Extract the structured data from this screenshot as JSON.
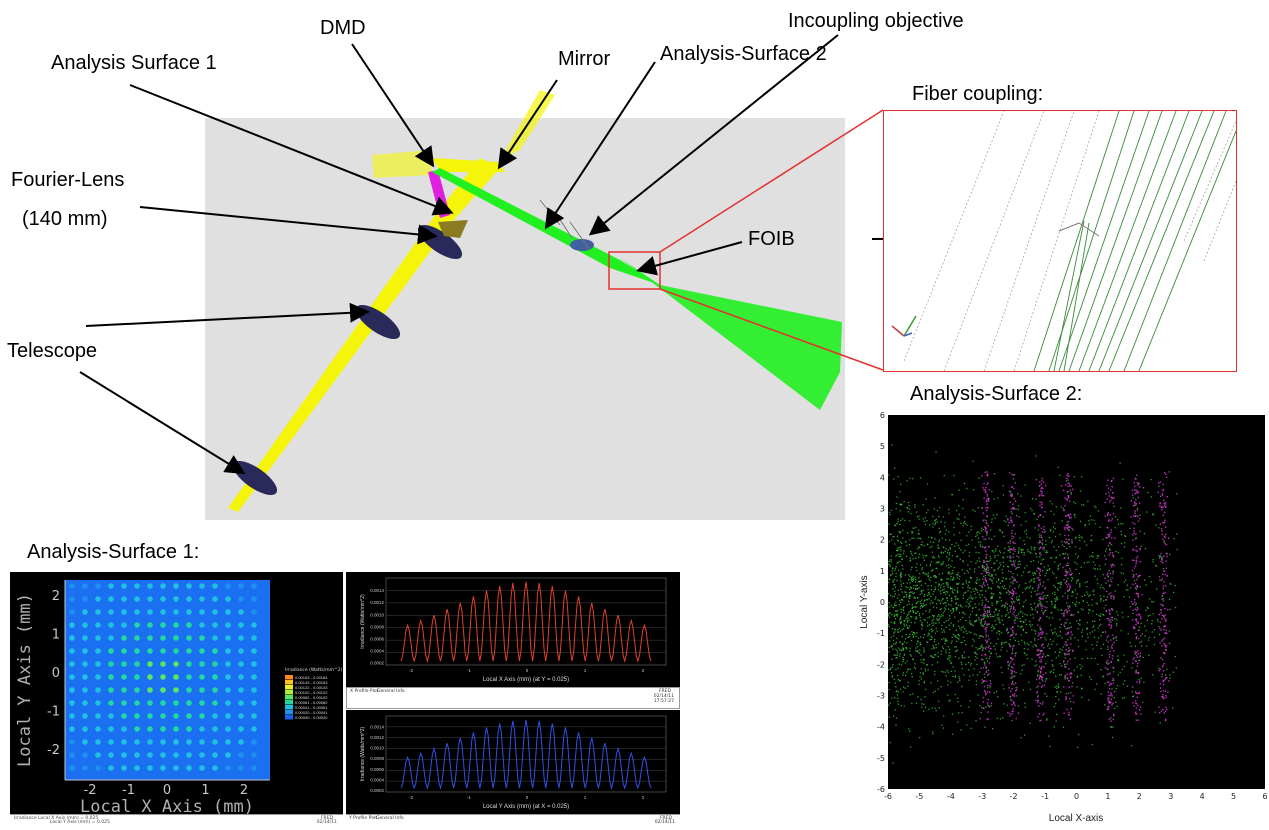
{
  "labels": {
    "dmd": "DMD",
    "incoupling": "Incoupling objective",
    "analysis1": "Analysis Surface 1",
    "mirror": "Mirror",
    "analysis2": "Analysis-Surface 2",
    "fiber": "Fiber coupling:",
    "fourier1": "Fourier-Lens",
    "fourier2": "(140 mm)",
    "foib": "FOIB",
    "telescope": "Telescope",
    "panel_as1": "Analysis-Surface 1:",
    "panel_as2": "Analysis-Surface 2:"
  },
  "irradiance_map": {
    "x_axis_label": "Local X Axis (mm)",
    "y_axis_label": "Local Y Axis (mm)",
    "x_ticks": [
      "-2",
      "-1",
      "0",
      "1",
      "2"
    ],
    "y_ticks": [
      "2",
      "1",
      "0",
      "-1",
      "-2"
    ],
    "legend_title": "Irradiance (Watts/mm^2)",
    "legend_rows": [
      {
        "range": "0.00163 - 0.00184",
        "color": "#ff8a1a"
      },
      {
        "range": "0.00143 - 0.00163",
        "color": "#ffc21a"
      },
      {
        "range": "0.00122 - 0.00143",
        "color": "#e8f020"
      },
      {
        "range": "0.00102 - 0.00122",
        "color": "#a8f030"
      },
      {
        "range": "0.00082 - 0.00102",
        "color": "#55e860"
      },
      {
        "range": "0.00061 - 0.00082",
        "color": "#20d8a0"
      },
      {
        "range": "0.00041 - 0.00061",
        "color": "#20c0e0"
      },
      {
        "range": "0.00020 - 0.00041",
        "color": "#2090f0"
      },
      {
        "range": "0.00000 - 0.00020",
        "color": "#1a60f0"
      }
    ]
  },
  "x_profile": {
    "ylabel": "Irradiance (Watts/mm^2)",
    "xlabel": "Local X Axis (mm) (at Y = 0.025)",
    "yticks": [
      "0.0014",
      "0.0012",
      "0.0010",
      "0.0008",
      "0.0006",
      "0.0004",
      "0.0002"
    ],
    "xticks": [
      "-2",
      "-1",
      "0",
      "1",
      "2"
    ],
    "footer_tab1": "X Profile Plot",
    "footer_tab2": "General Info",
    "footer_right": "FRED",
    "footer_date": "02/14/11",
    "footer_time": "17:57:27",
    "color": "#e0402a"
  },
  "y_profile": {
    "ylabel": "Irradiance (Watts/mm^2)",
    "xlabel": "Local Y Axis (mm) (at X = 0.025)",
    "yticks": [
      "0.0014",
      "0.0012",
      "0.0010",
      "0.0008",
      "0.0006",
      "0.0004",
      "0.0002"
    ],
    "xticks": [
      "-2",
      "-1",
      "0",
      "1",
      "2"
    ],
    "footer_tab1": "Y Profile Plot",
    "footer_tab2": "General Info",
    "footer_right": "FRED",
    "footer_date": "02/14/11",
    "color": "#3050e8"
  },
  "map_footer": {
    "line1": "Irradiance   Local X Axis (mm) = 0.025",
    "line2": "Local Y Axis (mm) = 0.025",
    "right": "FRED",
    "date": "02/14/11"
  },
  "scatter": {
    "xlabel": "Local X-axis",
    "ylabel": "Local Y-axis",
    "xticks": [
      "-6",
      "-5",
      "-4",
      "-3",
      "-2",
      "-1",
      "0",
      "1",
      "2",
      "3",
      "4",
      "5",
      "6"
    ],
    "yticks": [
      "6",
      "5",
      "4",
      "3",
      "2",
      "1",
      "0",
      "-1",
      "-2",
      "-3",
      "-4",
      "-5",
      "-6"
    ],
    "green": "#3cc43c",
    "magenta": "#d03cd0"
  },
  "colors": {
    "beam_yellow": "#f5f50a",
    "beam_green": "#20f020",
    "lens": "#2a2a5a",
    "highlight_box": "#e53030",
    "panel_bg": "#e0e0e0",
    "magenta": "#e020e0"
  }
}
